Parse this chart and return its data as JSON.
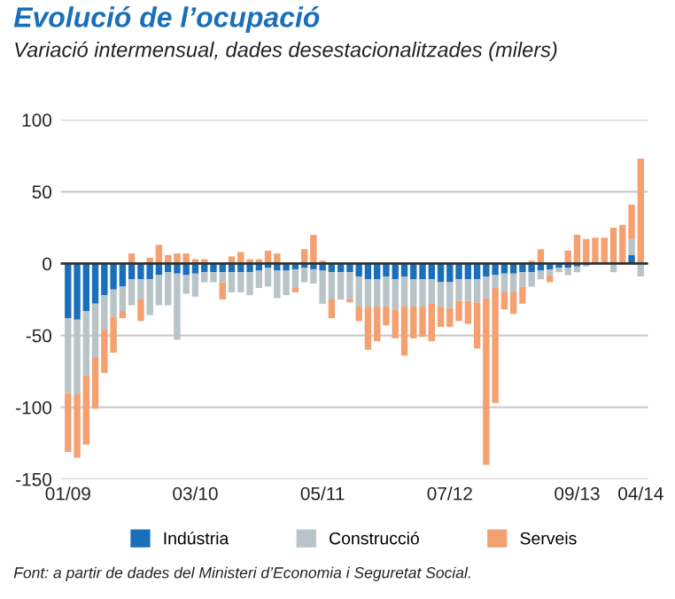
{
  "chart_data": {
    "type": "bar",
    "stacked": true,
    "title": "Evolució de l’ocupació",
    "subtitle": "Variació intermensual, dades desestacionalitzades (milers)",
    "categories": [
      "01/09",
      null,
      null,
      null,
      null,
      null,
      null,
      null,
      null,
      null,
      null,
      null,
      null,
      null,
      "03/10",
      null,
      null,
      null,
      null,
      null,
      null,
      null,
      null,
      null,
      null,
      null,
      null,
      null,
      "05/11",
      null,
      null,
      null,
      null,
      null,
      null,
      null,
      null,
      null,
      null,
      null,
      null,
      null,
      "07/12",
      null,
      null,
      null,
      null,
      null,
      null,
      null,
      null,
      null,
      null,
      null,
      null,
      null,
      "09/13",
      null,
      null,
      null,
      null,
      null,
      null,
      "04/14"
    ],
    "series": [
      {
        "name": "Indústria",
        "color": "#1a6fba",
        "values": [
          -38,
          -39,
          -33,
          -28,
          -22,
          -18,
          -16,
          -11,
          -11,
          -11,
          -8,
          -6,
          -7,
          -8,
          -7,
          -6,
          -6,
          -6,
          -6,
          -6,
          -6,
          -5,
          -3,
          -5,
          -5,
          -4,
          -3,
          -4,
          -5,
          -6,
          -6,
          -6,
          -9,
          -11,
          -11,
          -9,
          -11,
          -9,
          -11,
          -11,
          -11,
          -13,
          -13,
          -11,
          -11,
          -11,
          -9,
          -8,
          -7,
          -7,
          -6,
          -6,
          -5,
          -4,
          -3,
          -3,
          -2,
          -1,
          null,
          null,
          null,
          null,
          6,
          null
        ]
      },
      {
        "name": "Construcció",
        "color": "#b8c4c8",
        "values": [
          -52,
          -52,
          -45,
          -37,
          -24,
          -19,
          -17,
          -18,
          -14,
          -25,
          -21,
          -23,
          -46,
          -13,
          -16,
          -7,
          -7,
          -7,
          -14,
          -14,
          -16,
          -12,
          -13,
          -19,
          -17,
          -13,
          -10,
          -10,
          -23,
          -19,
          -19,
          -19,
          -21,
          -19,
          -19,
          -21,
          -21,
          -21,
          -19,
          -19,
          -17,
          -17,
          -18,
          -15,
          -15,
          -16,
          -15,
          -9,
          -13,
          -13,
          -10,
          -10,
          -6,
          -4,
          -3,
          -5,
          -4,
          -1,
          null,
          null,
          -6,
          null,
          11,
          -9
        ]
      },
      {
        "name": "Serveis",
        "color": "#f4a070",
        "values": [
          -41,
          -44,
          -48,
          -36,
          -30,
          -25,
          -5,
          7,
          -15,
          4,
          13,
          6,
          7,
          7,
          3,
          3,
          null,
          -12,
          5,
          8,
          3,
          3,
          9,
          7,
          null,
          -3,
          10,
          20,
          2,
          -13,
          null,
          -2,
          -10,
          -30,
          -24,
          -13,
          -20,
          -34,
          -22,
          -21,
          -26,
          -14,
          -13,
          -14,
          -16,
          -32,
          -116,
          -80,
          -12,
          -15,
          -12,
          2,
          10,
          -5,
          null,
          9,
          20,
          17,
          18,
          18,
          25,
          27,
          24,
          73
        ]
      }
    ],
    "ylim": [
      -150,
      100
    ],
    "yticks": [
      -150,
      -100,
      -50,
      0,
      50,
      100
    ],
    "grid": "y",
    "legend": "bottom",
    "ref_lines": [
      {
        "axis": "y",
        "value": 0,
        "color": "#333333"
      }
    ],
    "annotations": [
      "Font: a partir de dades del Ministeri d’Economia i Seguretat Social."
    ]
  }
}
